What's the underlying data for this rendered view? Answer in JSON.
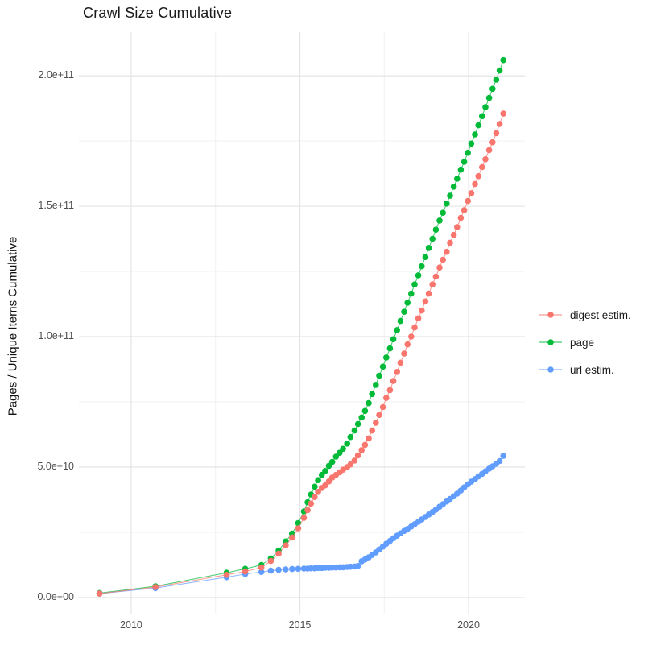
{
  "title": "Crawl Size Cumulative",
  "y_axis_title": "Pages / Unique Items Cumulative",
  "chart_data": {
    "type": "scatter",
    "title": "Crawl Size Cumulative",
    "xlabel": "",
    "ylabel": "Pages / Unique Items Cumulative",
    "value_unit": "pages, values stored in billions (1e9)",
    "grid": "on",
    "legend_position": "right",
    "xlim": [
      2008.45,
      2021.67
    ],
    "ylim_e9": [
      -6.5,
      216.7
    ],
    "x_ticks": [
      {
        "v": 2010,
        "label": "2010"
      },
      {
        "v": 2015,
        "label": "2015"
      },
      {
        "v": 2020,
        "label": "2020"
      }
    ],
    "x_minor": [
      2012.5,
      2017.5
    ],
    "y_ticks": [
      {
        "v": 0,
        "label": "0.0e+00"
      },
      {
        "v": 50,
        "label": "5.0e+10"
      },
      {
        "v": 100,
        "label": "1.0e+11"
      },
      {
        "v": 150,
        "label": "1.5e+11"
      },
      {
        "v": 200,
        "label": "2.0e+11"
      }
    ],
    "y_minor_e9": [
      25,
      75,
      125,
      175
    ],
    "series": [
      {
        "name": "digest estim.",
        "color": "#F8766D",
        "points": [
          [
            2009.06,
            1.5
          ],
          [
            2010.72,
            4.0
          ],
          [
            2012.83,
            8.7
          ],
          [
            2013.38,
            10.0
          ],
          [
            2013.86,
            11.5
          ],
          [
            2014.14,
            14.0
          ],
          [
            2014.37,
            16.8
          ],
          [
            2014.58,
            20.0
          ],
          [
            2014.77,
            23.0
          ],
          [
            2014.95,
            26.5
          ],
          [
            2015.12,
            30.5
          ],
          [
            2015.23,
            33.5
          ],
          [
            2015.33,
            36.0
          ],
          [
            2015.44,
            38.5
          ],
          [
            2015.54,
            40.5
          ],
          [
            2015.65,
            42.0
          ],
          [
            2015.75,
            43.0
          ],
          [
            2015.86,
            44.5
          ],
          [
            2015.96,
            46.0
          ],
          [
            2016.07,
            47.0
          ],
          [
            2016.18,
            48.0
          ],
          [
            2016.28,
            49.0
          ],
          [
            2016.4,
            50.0
          ],
          [
            2016.5,
            51.0
          ],
          [
            2016.62,
            52.5
          ],
          [
            2016.72,
            54.5
          ],
          [
            2016.83,
            56.5
          ],
          [
            2016.93,
            58.5
          ],
          [
            2017.04,
            61.0
          ],
          [
            2017.14,
            64.0
          ],
          [
            2017.25,
            67.0
          ],
          [
            2017.35,
            70.0
          ],
          [
            2017.46,
            73.0
          ],
          [
            2017.56,
            76.5
          ],
          [
            2017.67,
            79.5
          ],
          [
            2017.77,
            83.0
          ],
          [
            2017.88,
            86.5
          ],
          [
            2017.98,
            90.0
          ],
          [
            2018.09,
            93.5
          ],
          [
            2018.19,
            97.0
          ],
          [
            2018.3,
            100.0
          ],
          [
            2018.4,
            103.5
          ],
          [
            2018.51,
            107.0
          ],
          [
            2018.61,
            110.0
          ],
          [
            2018.72,
            113.5
          ],
          [
            2018.82,
            116.5
          ],
          [
            2018.93,
            120.0
          ],
          [
            2019.03,
            123.0
          ],
          [
            2019.14,
            126.5
          ],
          [
            2019.24,
            129.5
          ],
          [
            2019.35,
            132.5
          ],
          [
            2019.45,
            136.0
          ],
          [
            2019.56,
            139.0
          ],
          [
            2019.66,
            142.0
          ],
          [
            2019.77,
            145.5
          ],
          [
            2019.87,
            148.5
          ],
          [
            2019.98,
            152.0
          ],
          [
            2020.08,
            155.0
          ],
          [
            2020.19,
            158.5
          ],
          [
            2020.29,
            161.5
          ],
          [
            2020.4,
            165.0
          ],
          [
            2020.5,
            168.0
          ],
          [
            2020.61,
            171.5
          ],
          [
            2020.71,
            174.5
          ],
          [
            2020.82,
            178.0
          ],
          [
            2020.92,
            181.5
          ],
          [
            2021.03,
            185.5
          ]
        ]
      },
      {
        "name": "page",
        "color": "#00BA38",
        "points": [
          [
            2009.06,
            1.7
          ],
          [
            2010.72,
            4.3
          ],
          [
            2012.83,
            9.5
          ],
          [
            2013.38,
            11.0
          ],
          [
            2013.86,
            12.5
          ],
          [
            2014.14,
            15.0
          ],
          [
            2014.37,
            18.0
          ],
          [
            2014.58,
            21.5
          ],
          [
            2014.77,
            24.5
          ],
          [
            2014.95,
            28.5
          ],
          [
            2015.12,
            33.0
          ],
          [
            2015.23,
            36.5
          ],
          [
            2015.33,
            39.5
          ],
          [
            2015.44,
            42.5
          ],
          [
            2015.54,
            45.0
          ],
          [
            2015.65,
            47.0
          ],
          [
            2015.75,
            48.5
          ],
          [
            2015.86,
            50.5
          ],
          [
            2015.96,
            52.0
          ],
          [
            2016.07,
            54.0
          ],
          [
            2016.18,
            55.5
          ],
          [
            2016.28,
            57.0
          ],
          [
            2016.4,
            59.0
          ],
          [
            2016.5,
            61.5
          ],
          [
            2016.62,
            64.0
          ],
          [
            2016.72,
            66.5
          ],
          [
            2016.83,
            69.0
          ],
          [
            2016.93,
            71.5
          ],
          [
            2017.04,
            74.5
          ],
          [
            2017.14,
            78.0
          ],
          [
            2017.25,
            81.5
          ],
          [
            2017.35,
            85.0
          ],
          [
            2017.46,
            88.5
          ],
          [
            2017.56,
            92.0
          ],
          [
            2017.67,
            95.5
          ],
          [
            2017.77,
            99.0
          ],
          [
            2017.88,
            102.5
          ],
          [
            2017.98,
            106.0
          ],
          [
            2018.09,
            109.5
          ],
          [
            2018.19,
            113.0
          ],
          [
            2018.3,
            116.5
          ],
          [
            2018.4,
            120.0
          ],
          [
            2018.51,
            123.5
          ],
          [
            2018.61,
            127.0
          ],
          [
            2018.72,
            130.5
          ],
          [
            2018.82,
            134.0
          ],
          [
            2018.93,
            137.5
          ],
          [
            2019.03,
            141.0
          ],
          [
            2019.14,
            144.5
          ],
          [
            2019.24,
            147.5
          ],
          [
            2019.35,
            151.0
          ],
          [
            2019.45,
            154.0
          ],
          [
            2019.56,
            157.5
          ],
          [
            2019.66,
            160.5
          ],
          [
            2019.77,
            164.0
          ],
          [
            2019.87,
            167.0
          ],
          [
            2019.98,
            170.5
          ],
          [
            2020.08,
            174.0
          ],
          [
            2020.19,
            177.5
          ],
          [
            2020.29,
            181.0
          ],
          [
            2020.4,
            184.5
          ],
          [
            2020.5,
            188.0
          ],
          [
            2020.61,
            191.5
          ],
          [
            2020.71,
            195.0
          ],
          [
            2020.82,
            198.5
          ],
          [
            2020.92,
            202.0
          ],
          [
            2021.03,
            206.0
          ]
        ]
      },
      {
        "name": "url estim.",
        "color": "#619CFF",
        "points": [
          [
            2009.06,
            1.5
          ],
          [
            2010.72,
            3.6
          ],
          [
            2012.83,
            7.8
          ],
          [
            2013.38,
            9.0
          ],
          [
            2013.86,
            9.8
          ],
          [
            2014.14,
            10.3
          ],
          [
            2014.37,
            10.6
          ],
          [
            2014.58,
            10.8
          ],
          [
            2014.77,
            10.9
          ],
          [
            2014.95,
            11.0
          ],
          [
            2015.12,
            11.1
          ],
          [
            2015.23,
            11.1
          ],
          [
            2015.33,
            11.2
          ],
          [
            2015.44,
            11.2
          ],
          [
            2015.54,
            11.3
          ],
          [
            2015.65,
            11.3
          ],
          [
            2015.75,
            11.4
          ],
          [
            2015.86,
            11.4
          ],
          [
            2015.96,
            11.5
          ],
          [
            2016.07,
            11.5
          ],
          [
            2016.18,
            11.6
          ],
          [
            2016.28,
            11.6
          ],
          [
            2016.4,
            11.7
          ],
          [
            2016.5,
            11.8
          ],
          [
            2016.62,
            11.9
          ],
          [
            2016.72,
            12.1
          ],
          [
            2016.83,
            13.9
          ],
          [
            2016.93,
            14.6
          ],
          [
            2017.04,
            15.4
          ],
          [
            2017.14,
            16.3
          ],
          [
            2017.25,
            17.3
          ],
          [
            2017.35,
            18.4
          ],
          [
            2017.46,
            19.5
          ],
          [
            2017.56,
            20.6
          ],
          [
            2017.67,
            21.7
          ],
          [
            2017.77,
            22.7
          ],
          [
            2017.88,
            23.7
          ],
          [
            2017.98,
            24.6
          ],
          [
            2018.09,
            25.5
          ],
          [
            2018.19,
            26.3
          ],
          [
            2018.3,
            27.2
          ],
          [
            2018.4,
            28.1
          ],
          [
            2018.51,
            29.0
          ],
          [
            2018.61,
            29.9
          ],
          [
            2018.72,
            30.9
          ],
          [
            2018.82,
            31.8
          ],
          [
            2018.93,
            32.8
          ],
          [
            2019.03,
            33.7
          ],
          [
            2019.14,
            34.8
          ],
          [
            2019.24,
            35.8
          ],
          [
            2019.35,
            36.8
          ],
          [
            2019.45,
            37.8
          ],
          [
            2019.56,
            38.8
          ],
          [
            2019.66,
            39.8
          ],
          [
            2019.77,
            41.0
          ],
          [
            2019.87,
            42.2
          ],
          [
            2019.98,
            43.4
          ],
          [
            2020.08,
            44.4
          ],
          [
            2020.19,
            45.4
          ],
          [
            2020.29,
            46.4
          ],
          [
            2020.4,
            47.4
          ],
          [
            2020.5,
            48.4
          ],
          [
            2020.61,
            49.4
          ],
          [
            2020.71,
            50.3
          ],
          [
            2020.82,
            51.3
          ],
          [
            2020.92,
            52.3
          ],
          [
            2021.03,
            54.3
          ]
        ]
      }
    ]
  }
}
